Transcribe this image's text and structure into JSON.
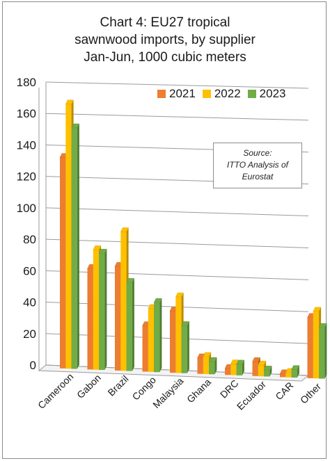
{
  "chart_data": {
    "type": "bar",
    "title_lines": [
      "Chart 4: EU27 tropical",
      "sawnwood imports, by supplier",
      "Jan-Jun, 1000 cubic meters"
    ],
    "categories": [
      "Cameroon",
      "Gabon",
      "Brazil",
      "Congo",
      "Malaysia",
      "Ghana",
      "DRC",
      "Ecuador",
      "CAR",
      "Other"
    ],
    "series": [
      {
        "name": "2021",
        "color": "#ED7D31",
        "values": [
          134,
          64,
          66,
          29,
          39,
          10,
          4,
          9,
          2,
          38
        ]
      },
      {
        "name": "2022",
        "color": "#FFC000",
        "values": [
          168,
          76,
          88,
          40,
          48,
          11,
          7,
          7,
          3,
          42
        ]
      },
      {
        "name": "2023",
        "color": "#70AD47",
        "values": [
          153,
          74,
          56,
          44,
          30,
          8,
          7,
          4,
          5,
          32
        ]
      }
    ],
    "ylim": [
      0,
      180
    ],
    "yticks": [
      0,
      20,
      40,
      60,
      80,
      100,
      120,
      140,
      160,
      180
    ],
    "grid": true,
    "legend_position": "top-right",
    "annotation_lines": [
      "Source:",
      "ITTO Analysis of",
      "Eurostat"
    ]
  }
}
